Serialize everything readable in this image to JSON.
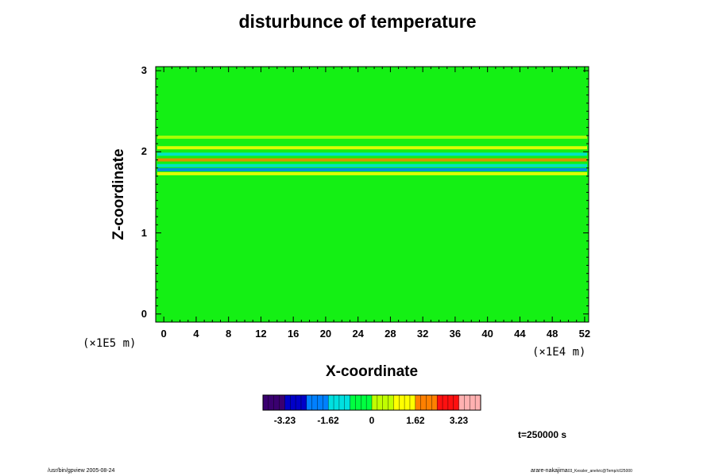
{
  "chart_data": {
    "type": "heatmap",
    "title": "disturbunce of temperature",
    "xlabel": "X-coordinate",
    "ylabel": "Z-coordinate",
    "x_unit": "(×1E4 m)",
    "z_unit": "(×1E5 m)",
    "xlim": [
      -1,
      52.5
    ],
    "ylim": [
      -0.1,
      3.05
    ],
    "x_ticks": [
      "0",
      "4",
      "8",
      "12",
      "16",
      "20",
      "24",
      "28",
      "32",
      "36",
      "40",
      "44",
      "48",
      "52"
    ],
    "z_ticks": [
      "0",
      "1",
      "2",
      "3"
    ],
    "colorbar": {
      "ticks": [
        "-3.23",
        "-1.62",
        "0",
        "1.62",
        "3.23"
      ],
      "range": [
        -4.04,
        4.04
      ],
      "colormap": [
        "#3a0070",
        "#0000c8",
        "#0080ff",
        "#00e0e0",
        "#00ff40",
        "#c0ff00",
        "#ffff00",
        "#ff8000",
        "#ff1010",
        "#ffb0b0"
      ]
    },
    "background_color": "#14f014",
    "bands": [
      {
        "z": 2.18,
        "value": 0.6
      },
      {
        "z": 2.05,
        "value": 1.4
      },
      {
        "z": 1.97,
        "value": -0.9
      },
      {
        "z": 1.9,
        "value": 1.8
      },
      {
        "z": 1.83,
        "value": -1.2
      },
      {
        "z": 1.78,
        "value": -2.4
      },
      {
        "z": 1.73,
        "value": 1.6
      }
    ]
  },
  "time_label": "t=250000 s",
  "footer": {
    "left": "/usr/bin/gpview 2005-08-24",
    "right_main": "arare-nakajima",
    "right_small": "03_Kessler_anelvic@Temp/c025000"
  }
}
